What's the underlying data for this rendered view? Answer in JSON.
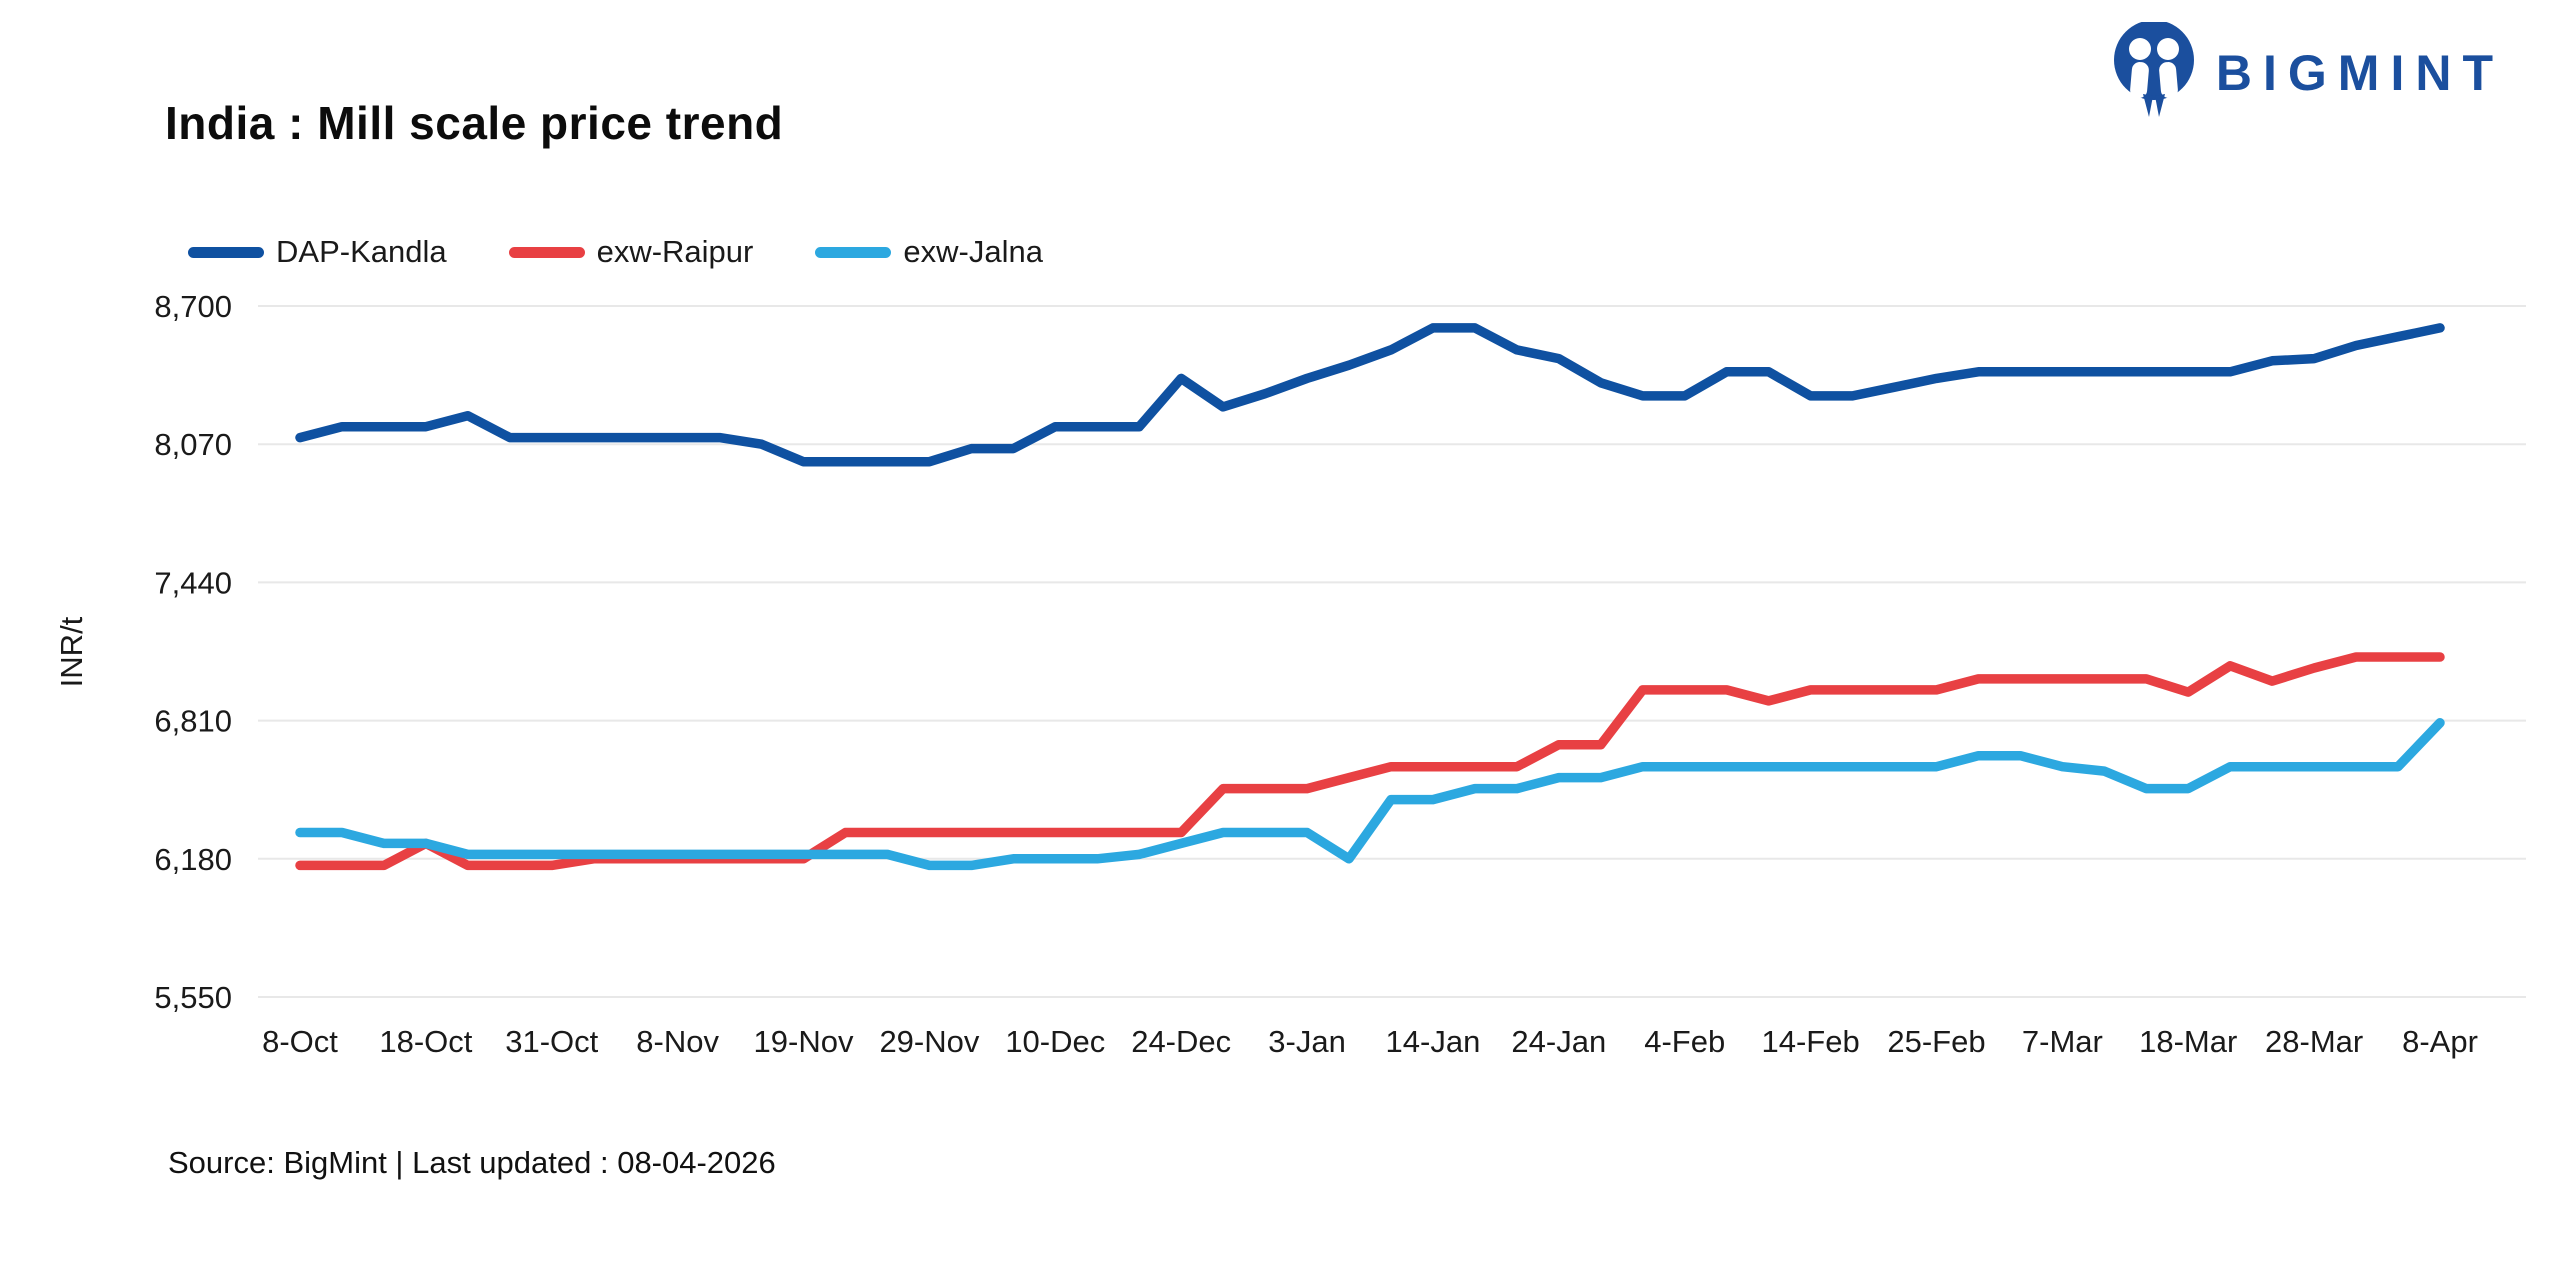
{
  "page": {
    "title": "India : Mill scale price trend"
  },
  "brand": {
    "name": "BIGMINT",
    "color": "#1b4f9e",
    "icon": "bigmint-people-circle-logo"
  },
  "legend": {
    "items": [
      {
        "label": "DAP-Kandla",
        "color": "#0f51a1"
      },
      {
        "label": "exw-Raipur",
        "color": "#e84043"
      },
      {
        "label": "exw-Jalna",
        "color": "#2ca8e0"
      }
    ]
  },
  "chart_data": {
    "type": "line",
    "title": "India : Mill scale price trend",
    "xlabel": "",
    "ylabel": "INR/t",
    "ylim": [
      5550,
      8700
    ],
    "y_tick_labels": [
      "5,550",
      "6,180",
      "6,810",
      "7,440",
      "8,070",
      "8,700"
    ],
    "grid": "horizontal",
    "gridline_color": "#e8e8e8",
    "legend_position": "top-left",
    "x_tick_labels": [
      "8-Oct",
      "18-Oct",
      "31-Oct",
      "8-Nov",
      "19-Nov",
      "29-Nov",
      "10-Dec",
      "24-Dec",
      "3-Jan",
      "14-Jan",
      "24-Jan",
      "4-Feb",
      "14-Feb",
      "25-Feb",
      "7-Mar",
      "18-Mar",
      "28-Mar",
      "8-Apr"
    ],
    "points_per_tick": 3,
    "series": [
      {
        "name": "DAP-Kandla",
        "color": "#0f51a1",
        "values": [
          8100,
          8150,
          8150,
          8150,
          8200,
          8100,
          8100,
          8100,
          8100,
          8100,
          8100,
          8070,
          7990,
          7990,
          7990,
          7990,
          8050,
          8050,
          8150,
          8150,
          8150,
          8370,
          8240,
          8300,
          8370,
          8430,
          8500,
          8600,
          8600,
          8500,
          8460,
          8350,
          8290,
          8290,
          8400,
          8400,
          8290,
          8290,
          8330,
          8370,
          8400,
          8400,
          8400,
          8400,
          8400,
          8400,
          8400,
          8450,
          8460,
          8520,
          8560,
          8600
        ]
      },
      {
        "name": "exw-Raipur",
        "color": "#e84043",
        "values": [
          6150,
          6150,
          6150,
          6250,
          6150,
          6150,
          6150,
          6180,
          6180,
          6180,
          6180,
          6180,
          6180,
          6300,
          6300,
          6300,
          6300,
          6300,
          6300,
          6300,
          6300,
          6300,
          6500,
          6500,
          6500,
          6550,
          6600,
          6600,
          6600,
          6600,
          6700,
          6700,
          6950,
          6950,
          6950,
          6900,
          6950,
          6950,
          6950,
          6950,
          7000,
          7000,
          7000,
          7000,
          7000,
          6940,
          7060,
          6990,
          7050,
          7100,
          7100,
          7100
        ]
      },
      {
        "name": "exw-Jalna",
        "color": "#2ca8e0",
        "values": [
          6300,
          6300,
          6250,
          6250,
          6200,
          6200,
          6200,
          6200,
          6200,
          6200,
          6200,
          6200,
          6200,
          6200,
          6200,
          6150,
          6150,
          6180,
          6180,
          6180,
          6200,
          6250,
          6300,
          6300,
          6300,
          6180,
          6450,
          6450,
          6500,
          6500,
          6550,
          6550,
          6600,
          6600,
          6600,
          6600,
          6600,
          6600,
          6600,
          6600,
          6650,
          6650,
          6600,
          6580,
          6500,
          6500,
          6600,
          6600,
          6600,
          6600,
          6600,
          6800
        ]
      }
    ]
  },
  "footer": {
    "source_note": "Source: BigMint | Last updated : 08-04-2026"
  }
}
